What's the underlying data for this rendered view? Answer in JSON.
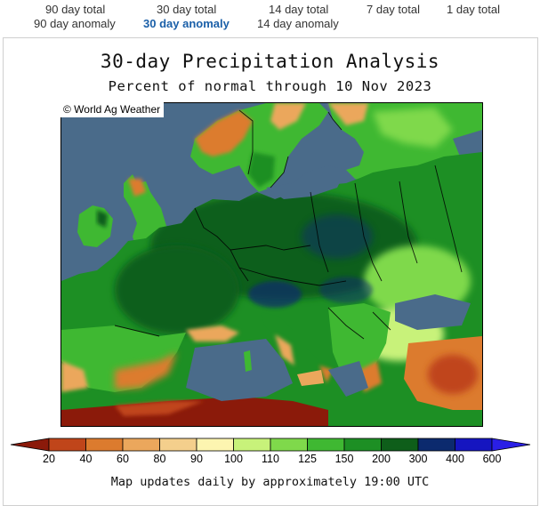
{
  "tabs": {
    "row1": [
      {
        "label": "90 day total",
        "active": false
      },
      {
        "label": "30 day total",
        "active": false
      },
      {
        "label": "14 day total",
        "active": false
      },
      {
        "label": "7 day total",
        "active": false
      },
      {
        "label": "1 day total",
        "active": false
      }
    ],
    "row2": [
      {
        "label": "90 day anomaly",
        "active": false
      },
      {
        "label": "30 day anomaly",
        "active": true
      },
      {
        "label": "14 day anomaly",
        "active": false
      }
    ]
  },
  "title": "30-day Precipitation Analysis",
  "subtitle": "Percent of normal through 10 Nov 2023",
  "copyright": "© World Ag Weather",
  "legend": {
    "labels": [
      "20",
      "40",
      "60",
      "80",
      "90",
      "100",
      "110",
      "125",
      "150",
      "200",
      "300",
      "400",
      "600"
    ],
    "colors": [
      "#8b1a0a",
      "#c0451a",
      "#dc7b2e",
      "#eba75c",
      "#f4cf8c",
      "#fdf5b0",
      "#c8f27a",
      "#7fd94b",
      "#3fb832",
      "#1d8f24",
      "#0e5e1a",
      "#0c2a6e",
      "#1515c0",
      "#2a1fe6"
    ]
  },
  "footer": "Map updates daily by approximately 19:00 UTC",
  "colors": {
    "ocean": "#4a6b8a",
    "active_tab": "#1a5fa8"
  }
}
